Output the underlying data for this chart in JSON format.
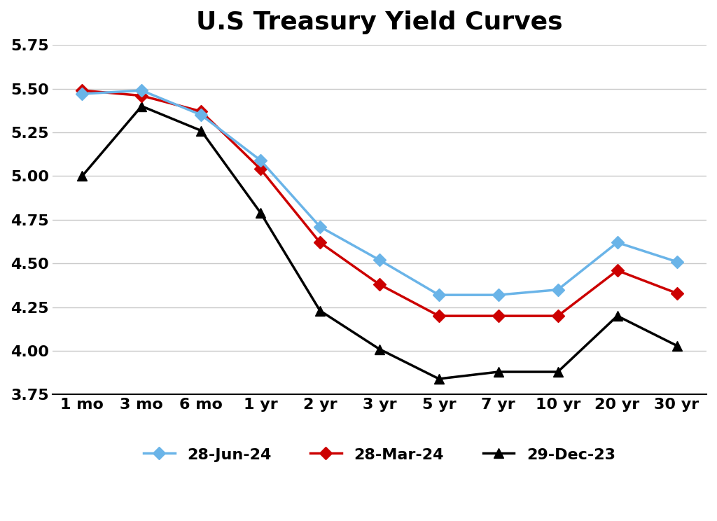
{
  "title": "U.S Treasury Yield Curves",
  "title_fontsize": 26,
  "title_fontweight": "bold",
  "x_labels": [
    "1 mo",
    "3 mo",
    "6 mo",
    "1 yr",
    "2 yr",
    "3 yr",
    "5 yr",
    "7 yr",
    "10 yr",
    "20 yr",
    "30 yr"
  ],
  "series": [
    {
      "label": "28-Jun-24",
      "color": "#6ab4e8",
      "values": [
        5.47,
        5.49,
        5.35,
        5.09,
        4.71,
        4.52,
        4.32,
        4.32,
        4.35,
        4.62,
        4.51
      ],
      "marker": "D",
      "linewidth": 2.5,
      "markersize": 9,
      "zorder": 3
    },
    {
      "label": "28-Mar-24",
      "color": "#cc0000",
      "values": [
        5.49,
        5.46,
        5.37,
        5.04,
        4.62,
        4.38,
        4.2,
        4.2,
        4.2,
        4.46,
        4.33
      ],
      "marker": "D",
      "linewidth": 2.5,
      "markersize": 9,
      "zorder": 2
    },
    {
      "label": "29-Dec-23",
      "color": "#000000",
      "values": [
        5.0,
        5.4,
        5.26,
        4.79,
        4.23,
        4.01,
        3.84,
        3.88,
        3.88,
        4.2,
        4.03
      ],
      "marker": "^",
      "linewidth": 2.5,
      "markersize": 10,
      "zorder": 1
    }
  ],
  "ylim": [
    3.75,
    5.75
  ],
  "yticks": [
    3.75,
    4.0,
    4.25,
    4.5,
    4.75,
    5.0,
    5.25,
    5.5,
    5.75
  ],
  "tick_fontsize": 16,
  "tick_fontweight": "bold",
  "legend_fontsize": 16,
  "background_color": "#ffffff",
  "grid_color": "#c8c8c8",
  "grid_linewidth": 1.0
}
